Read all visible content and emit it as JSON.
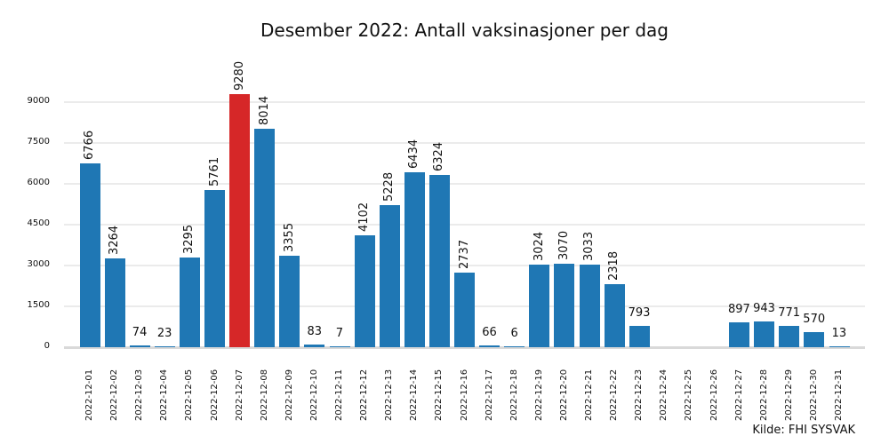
{
  "chart_data": {
    "type": "bar",
    "title": "Desember 2022: Antall vaksinasjoner per dag",
    "xlabel": "",
    "ylabel": "",
    "source": "Kilde: FHI SYSVAK",
    "categories": [
      "2022-12-01",
      "2022-12-02",
      "2022-12-03",
      "2022-12-04",
      "2022-12-05",
      "2022-12-06",
      "2022-12-07",
      "2022-12-08",
      "2022-12-09",
      "2022-12-10",
      "2022-12-11",
      "2022-12-12",
      "2022-12-13",
      "2022-12-14",
      "2022-12-15",
      "2022-12-16",
      "2022-12-17",
      "2022-12-18",
      "2022-12-19",
      "2022-12-20",
      "2022-12-21",
      "2022-12-22",
      "2022-12-23",
      "2022-12-24",
      "2022-12-25",
      "2022-12-26",
      "2022-12-27",
      "2022-12-28",
      "2022-12-29",
      "2022-12-30",
      "2022-12-31"
    ],
    "values": [
      6766,
      3264,
      74,
      23,
      3295,
      5761,
      9280,
      8014,
      3355,
      83,
      7,
      4102,
      5228,
      6434,
      6324,
      2737,
      66,
      6,
      3024,
      3070,
      3033,
      2318,
      793,
      0,
      0,
      0,
      897,
      943,
      771,
      570,
      13
    ],
    "value_labels": [
      "6766",
      "3264",
      "74",
      "23",
      "3295",
      "5761",
      "9280",
      "8014",
      "3355",
      "83",
      "7",
      "4102",
      "5228",
      "6434",
      "6324",
      "2737",
      "66",
      "6",
      "3024",
      "3070",
      "3033",
      "2318",
      "793",
      "",
      "",
      "",
      "897",
      "943",
      "771",
      "570",
      "13"
    ],
    "highlight_index": 6,
    "colors": {
      "bar": "#1f77b4",
      "highlight": "#d62728",
      "grid": "#ebebeb"
    },
    "yticks": [
      0,
      1500,
      3000,
      4500,
      6000,
      7500,
      9000
    ],
    "ylim": [
      0,
      9280
    ],
    "grid": true,
    "legend": null
  }
}
